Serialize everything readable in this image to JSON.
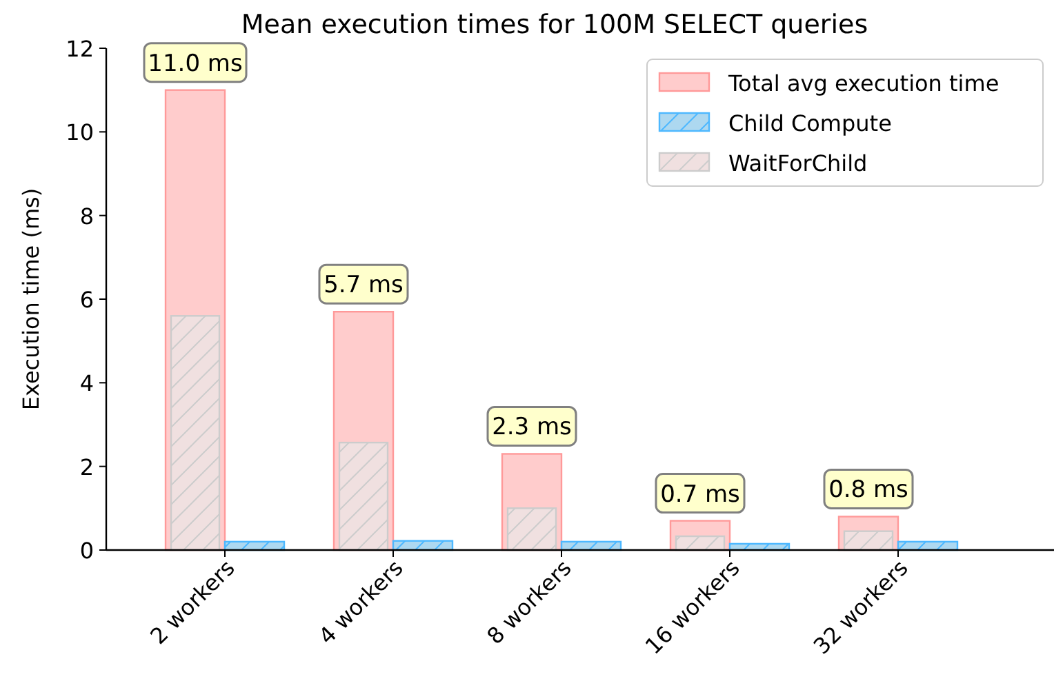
{
  "chart_data": {
    "type": "bar",
    "title": "Mean execution times for 100M SELECT queries",
    "ylabel": "Execution time (ms)",
    "categories": [
      "2 workers",
      "4 workers",
      "8 workers",
      "16 workers",
      "32 workers"
    ],
    "series": [
      {
        "name": "Total avg execution time",
        "color": "#ffcccc",
        "values": [
          11.0,
          5.7,
          2.3,
          0.7,
          0.8
        ],
        "value_labels": [
          "11.0 ms",
          "5.7 ms",
          "2.3 ms",
          "0.7 ms",
          "0.8 ms"
        ]
      },
      {
        "name": "Child Compute",
        "color": "#add8f0",
        "values": [
          0.2,
          0.22,
          0.2,
          0.15,
          0.2
        ]
      },
      {
        "name": "WaitForChild",
        "color": "#f0e0e0",
        "values": [
          5.6,
          2.57,
          1.0,
          0.33,
          0.45
        ]
      }
    ],
    "ylim": [
      0,
      12
    ],
    "yticks": [
      0,
      2,
      4,
      6,
      8,
      10,
      12
    ],
    "grid": false,
    "legend": "top right"
  }
}
